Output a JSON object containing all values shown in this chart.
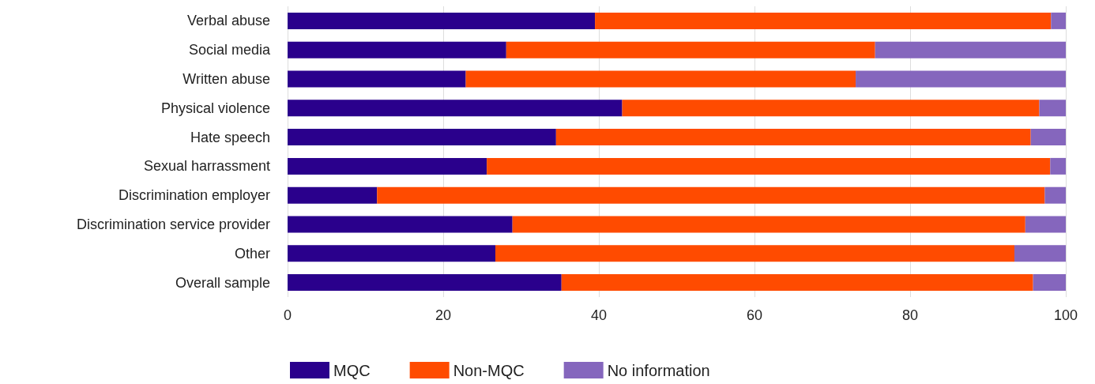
{
  "chart_data": {
    "type": "bar",
    "orientation": "horizontal",
    "stacked": true,
    "categories": [
      "Verbal abuse",
      "Social media",
      "Written abuse",
      "Physical violence",
      "Hate speech",
      "Sexual harrassment",
      "Discrimination employer",
      "Discrimination service provider",
      "Other",
      "Overall sample"
    ],
    "series": [
      {
        "name": "MQC",
        "color": "#2a008c",
        "values": [
          39.5,
          28.1,
          22.9,
          43.0,
          34.5,
          25.6,
          11.5,
          28.9,
          26.7,
          35.2
        ]
      },
      {
        "name": "Non-MQC",
        "color": "#ff4b00",
        "values": [
          58.6,
          47.4,
          50.1,
          53.6,
          61.0,
          72.4,
          85.8,
          65.9,
          66.7,
          60.6
        ]
      },
      {
        "name": "No information",
        "color": "#8566bd",
        "values": [
          1.9,
          24.5,
          27.0,
          3.4,
          4.5,
          2.0,
          2.7,
          5.2,
          6.6,
          4.2
        ]
      }
    ],
    "xlim": [
      0,
      100
    ],
    "xticks": [
      0,
      20,
      40,
      60,
      80,
      100
    ],
    "grid": "x",
    "legend": "bottom left"
  }
}
